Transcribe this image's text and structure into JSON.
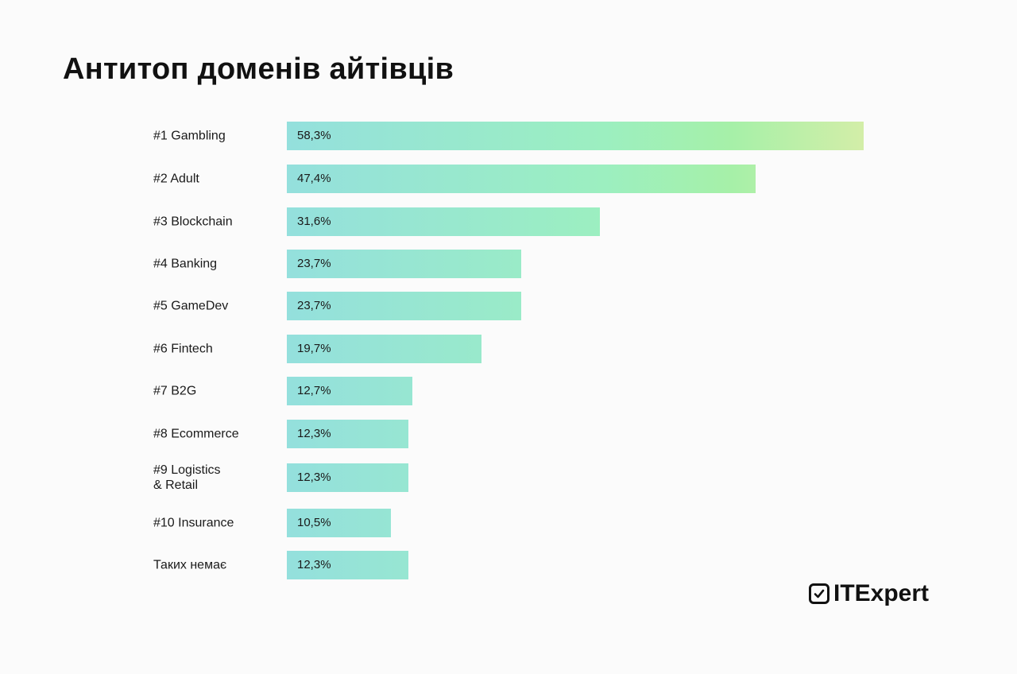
{
  "chart_data": {
    "type": "bar",
    "orientation": "horizontal",
    "title": "Антитоп доменів айтівців",
    "xlabel": "",
    "ylabel": "",
    "xlim": [
      0,
      58.3
    ],
    "grid": false,
    "categories": [
      "#1 Gambling",
      "#2 Adult",
      "#3 Blockchain",
      "#4 Banking",
      "#5 GameDev",
      "#6 Fintech",
      "#7 B2G",
      "#8 Ecommerce",
      "#9 Logistics\n& Retail",
      "#10 Insurance",
      "Таких немає"
    ],
    "values": [
      58.3,
      47.4,
      31.6,
      23.7,
      23.7,
      19.7,
      12.7,
      12.3,
      12.3,
      10.5,
      12.3
    ],
    "value_labels": [
      "58,3%",
      "47,4%",
      "31,6%",
      "23,7%",
      "23,7%",
      "19,7%",
      "12,7%",
      "12,3%",
      "12,3%",
      "10,5%",
      "12,3%"
    ],
    "unit": "%",
    "colors": {
      "bar_start": "#94e0dd",
      "bar_mid": "#a6f0a8",
      "bar_end": "#d3eea8"
    }
  },
  "branding": {
    "logo_text": "ITExpert",
    "logo_icon": "checkbox-check-icon"
  }
}
